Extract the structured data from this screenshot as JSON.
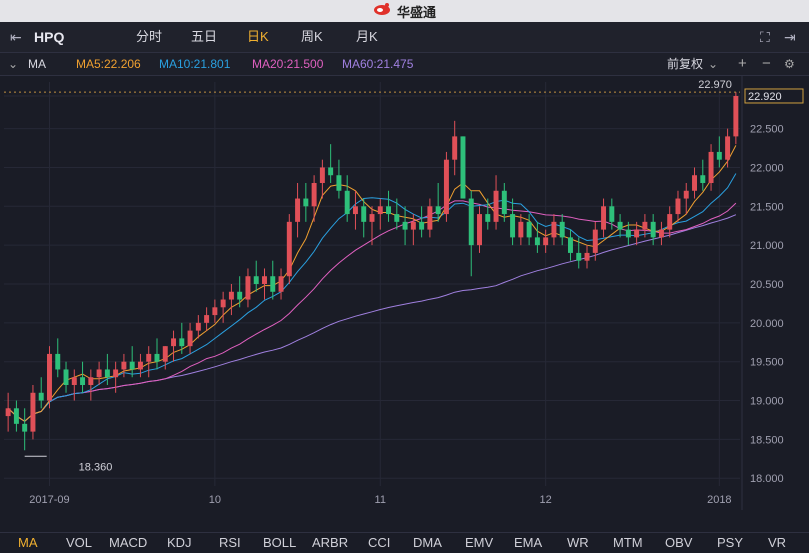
{
  "app": {
    "title": "华盛通"
  },
  "toolbar": {
    "symbol": "HPQ",
    "periods": [
      "分时",
      "五日",
      "日K",
      "周K",
      "月K"
    ],
    "active_period": "日K"
  },
  "indicator_bar": {
    "name": "MA",
    "ma5": "MA5:22.206",
    "ma10": "MA10:21.801",
    "ma20": "MA20:21.500",
    "ma60": "MA60:21.475",
    "adjust": "前复权",
    "colors": {
      "ma5": "#f0a030",
      "ma10": "#2aa0e0",
      "ma20": "#e060c0",
      "ma60": "#a080e0"
    }
  },
  "chart": {
    "last_price_label": "22.970",
    "current_price_box": "22.920",
    "low_label": "18.360"
  },
  "chart_data": {
    "type": "candlestick",
    "y_ticks": [
      "22.920",
      "22.500",
      "22.000",
      "21.500",
      "21.000",
      "20.500",
      "20.000",
      "19.500",
      "19.000",
      "18.500",
      "18.000"
    ],
    "y_tick_values": [
      22.92,
      22.5,
      22.0,
      21.5,
      21.0,
      20.5,
      20.0,
      19.5,
      19.0,
      18.5,
      18.0
    ],
    "ylim": [
      17.9,
      23.1
    ],
    "x_ticks": [
      "2017-09",
      "10",
      "11",
      "12",
      "2018"
    ],
    "x_tick_index": [
      5,
      25,
      45,
      65,
      86
    ],
    "up_color": "#e05058",
    "down_color": "#2ec07a",
    "candles": [
      [
        18.8,
        19.1,
        18.6,
        18.9
      ],
      [
        18.9,
        19.0,
        18.6,
        18.7
      ],
      [
        18.7,
        18.9,
        18.36,
        18.6
      ],
      [
        18.6,
        19.2,
        18.5,
        19.1
      ],
      [
        19.1,
        19.3,
        18.9,
        19.0
      ],
      [
        19.0,
        19.7,
        18.9,
        19.6
      ],
      [
        19.6,
        19.8,
        19.3,
        19.4
      ],
      [
        19.4,
        19.5,
        19.1,
        19.2
      ],
      [
        19.2,
        19.4,
        19.0,
        19.3
      ],
      [
        19.3,
        19.5,
        19.1,
        19.2
      ],
      [
        19.2,
        19.4,
        19.0,
        19.3
      ],
      [
        19.3,
        19.5,
        19.2,
        19.4
      ],
      [
        19.4,
        19.6,
        19.2,
        19.3
      ],
      [
        19.3,
        19.5,
        19.1,
        19.4
      ],
      [
        19.4,
        19.6,
        19.3,
        19.5
      ],
      [
        19.5,
        19.7,
        19.3,
        19.4
      ],
      [
        19.4,
        19.6,
        19.3,
        19.5
      ],
      [
        19.5,
        19.7,
        19.3,
        19.6
      ],
      [
        19.6,
        19.8,
        19.4,
        19.5
      ],
      [
        19.5,
        19.7,
        19.4,
        19.7
      ],
      [
        19.7,
        19.9,
        19.5,
        19.8
      ],
      [
        19.8,
        20.0,
        19.6,
        19.7
      ],
      [
        19.7,
        20.0,
        19.6,
        19.9
      ],
      [
        19.9,
        20.1,
        19.8,
        20.0
      ],
      [
        20.0,
        20.2,
        19.9,
        20.1
      ],
      [
        20.1,
        20.3,
        20.0,
        20.2
      ],
      [
        20.2,
        20.4,
        20.0,
        20.3
      ],
      [
        20.3,
        20.5,
        20.1,
        20.4
      ],
      [
        20.4,
        20.6,
        20.2,
        20.3
      ],
      [
        20.3,
        20.7,
        20.2,
        20.6
      ],
      [
        20.6,
        20.8,
        20.4,
        20.5
      ],
      [
        20.5,
        20.7,
        20.3,
        20.6
      ],
      [
        20.6,
        20.8,
        20.3,
        20.4
      ],
      [
        20.4,
        20.7,
        20.3,
        20.6
      ],
      [
        20.6,
        21.4,
        20.5,
        21.3
      ],
      [
        21.3,
        21.8,
        21.1,
        21.6
      ],
      [
        21.6,
        21.8,
        21.3,
        21.5
      ],
      [
        21.5,
        21.9,
        21.3,
        21.8
      ],
      [
        21.8,
        22.1,
        21.6,
        22.0
      ],
      [
        22.0,
        22.3,
        21.8,
        21.9
      ],
      [
        21.9,
        22.1,
        21.6,
        21.7
      ],
      [
        21.7,
        21.9,
        21.3,
        21.4
      ],
      [
        21.4,
        21.7,
        21.2,
        21.5
      ],
      [
        21.5,
        21.6,
        21.1,
        21.3
      ],
      [
        21.3,
        21.5,
        21.0,
        21.4
      ],
      [
        21.4,
        21.6,
        21.2,
        21.5
      ],
      [
        21.5,
        21.7,
        21.3,
        21.4
      ],
      [
        21.4,
        21.6,
        21.2,
        21.3
      ],
      [
        21.3,
        21.5,
        21.0,
        21.2
      ],
      [
        21.2,
        21.4,
        21.0,
        21.3
      ],
      [
        21.3,
        21.5,
        21.1,
        21.2
      ],
      [
        21.2,
        21.6,
        21.1,
        21.5
      ],
      [
        21.5,
        21.8,
        21.3,
        21.4
      ],
      [
        21.4,
        22.2,
        21.3,
        22.1
      ],
      [
        22.1,
        22.6,
        21.9,
        22.4
      ],
      [
        22.4,
        22.4,
        21.6,
        21.6
      ],
      [
        21.6,
        21.7,
        20.6,
        21.0
      ],
      [
        21.0,
        21.5,
        20.9,
        21.4
      ],
      [
        21.4,
        21.6,
        21.2,
        21.3
      ],
      [
        21.3,
        21.9,
        21.2,
        21.7
      ],
      [
        21.7,
        21.8,
        21.3,
        21.4
      ],
      [
        21.4,
        21.6,
        21.0,
        21.1
      ],
      [
        21.1,
        21.4,
        21.0,
        21.3
      ],
      [
        21.3,
        21.4,
        21.0,
        21.1
      ],
      [
        21.1,
        21.3,
        20.9,
        21.0
      ],
      [
        21.0,
        21.2,
        20.9,
        21.1
      ],
      [
        21.1,
        21.4,
        21.0,
        21.3
      ],
      [
        21.3,
        21.4,
        21.0,
        21.1
      ],
      [
        21.1,
        21.2,
        20.8,
        20.9
      ],
      [
        20.9,
        21.1,
        20.7,
        20.8
      ],
      [
        20.8,
        21.0,
        20.7,
        20.9
      ],
      [
        20.9,
        21.3,
        20.8,
        21.2
      ],
      [
        21.2,
        21.6,
        21.1,
        21.5
      ],
      [
        21.5,
        21.6,
        21.2,
        21.3
      ],
      [
        21.3,
        21.4,
        21.1,
        21.2
      ],
      [
        21.2,
        21.3,
        21.0,
        21.1
      ],
      [
        21.1,
        21.3,
        21.0,
        21.2
      ],
      [
        21.2,
        21.4,
        21.1,
        21.3
      ],
      [
        21.3,
        21.4,
        21.0,
        21.1
      ],
      [
        21.1,
        21.3,
        21.0,
        21.2
      ],
      [
        21.2,
        21.5,
        21.1,
        21.4
      ],
      [
        21.4,
        21.7,
        21.3,
        21.6
      ],
      [
        21.6,
        21.8,
        21.4,
        21.7
      ],
      [
        21.7,
        22.0,
        21.6,
        21.9
      ],
      [
        21.9,
        22.1,
        21.7,
        21.8
      ],
      [
        21.8,
        22.3,
        21.7,
        22.2
      ],
      [
        22.2,
        22.4,
        22.0,
        22.1
      ],
      [
        22.1,
        22.5,
        22.0,
        22.4
      ],
      [
        22.4,
        22.97,
        22.3,
        22.92
      ]
    ]
  },
  "bottom_tabs": [
    "MA",
    "VOL",
    "MACD",
    "KDJ",
    "RSI",
    "BOLL",
    "ARBR",
    "CCI",
    "DMA",
    "EMV",
    "EMA",
    "WR",
    "MTM",
    "OBV",
    "PSY",
    "VR"
  ],
  "bottom_active": "MA"
}
